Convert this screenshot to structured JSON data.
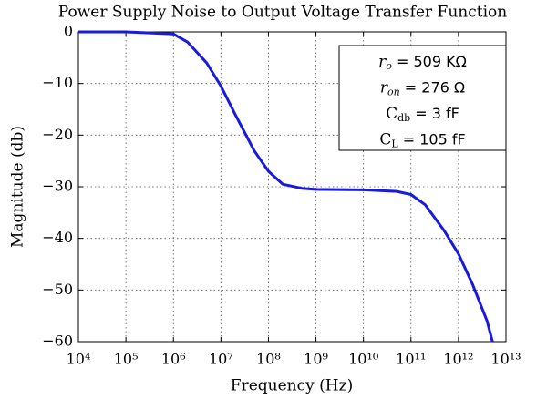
{
  "chart_data": {
    "type": "line",
    "title": "Power Supply Noise to Output Voltage Transfer Function",
    "xlabel": "Frequency (Hz)",
    "ylabel": "Magnitude (db)",
    "xscale": "log",
    "grid": true,
    "x": [
      10000,
      100000,
      1000000,
      2000000,
      5000000,
      10000000,
      20000000,
      50000000,
      100000000,
      200000000,
      500000000,
      1000000000,
      10000000000,
      50000000000,
      100000000000,
      200000000000,
      500000000000,
      1000000000000,
      2000000000000,
      4000000000000,
      5200000000000
    ],
    "series": [
      {
        "name": "transfer function",
        "color": "#1a1adb",
        "values": [
          0,
          0,
          -0.4,
          -2,
          -6,
          -10.5,
          -16,
          -23,
          -27,
          -29.5,
          -30.3,
          -30.5,
          -30.6,
          -30.9,
          -31.5,
          -33.5,
          -38.5,
          -43,
          -49,
          -56,
          -60
        ]
      }
    ],
    "xlim": [
      10000,
      10000000000000
    ],
    "xticks": [
      {
        "value": 10000,
        "label": "10⁴"
      },
      {
        "value": 100000,
        "label": "10⁵"
      },
      {
        "value": 1000000,
        "label": "10⁶"
      },
      {
        "value": 10000000,
        "label": "10⁷"
      },
      {
        "value": 100000000,
        "label": "10⁸"
      },
      {
        "value": 1000000000,
        "label": "10⁹"
      },
      {
        "value": 10000000000,
        "label": "10¹⁰"
      },
      {
        "value": 100000000000,
        "label": "10¹¹"
      },
      {
        "value": 1000000000000,
        "label": "10¹²"
      },
      {
        "value": 10000000000000,
        "label": "10¹³"
      }
    ],
    "ylim": [
      -60,
      0
    ],
    "yticks": [
      0,
      {
        "value": -10,
        "label": "−10"
      },
      {
        "value": -20,
        "label": "−20"
      },
      {
        "value": -30,
        "label": "−30"
      },
      {
        "value": -40,
        "label": "−40"
      },
      {
        "value": -50,
        "label": "−50"
      },
      {
        "value": -60,
        "label": "−60"
      }
    ],
    "annotations": [
      {
        "base": "r",
        "sub": "o",
        "text": " = 509 KΩ",
        "italic": true
      },
      {
        "base": "r",
        "sub": "on",
        "text": " = 276 Ω",
        "italic": true
      },
      {
        "base": "C",
        "sub": "db",
        "text": " = 3 fF",
        "italic": false
      },
      {
        "base": "C",
        "sub": "L",
        "text": " = 105 fF",
        "italic": false
      }
    ]
  }
}
